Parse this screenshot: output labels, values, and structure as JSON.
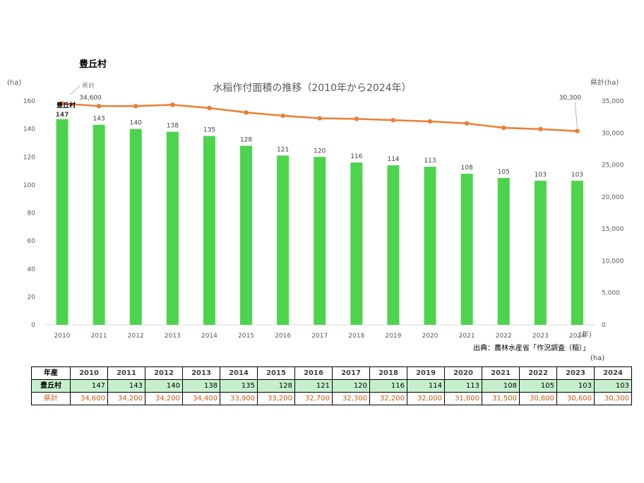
{
  "chart_data": {
    "type": "bar",
    "title": "水稲作付面積の推移（2010年から2024年）",
    "village_name": "豊丘村",
    "left_axis_unit": "(ha)",
    "right_axis_unit": "県計(ha)",
    "x_unit": "(年)",
    "categories": [
      "2010",
      "2011",
      "2012",
      "2013",
      "2014",
      "2015",
      "2016",
      "2017",
      "2018",
      "2019",
      "2020",
      "2021",
      "2022",
      "2023",
      "2024"
    ],
    "series": [
      {
        "name": "豊丘村",
        "type": "bar",
        "axis": "left",
        "color": "#4dd44d",
        "values": [
          147,
          143,
          140,
          138,
          135,
          128,
          121,
          120,
          116,
          114,
          113,
          108,
          105,
          103,
          103
        ]
      },
      {
        "name": "県計",
        "type": "line",
        "axis": "right",
        "color": "#ed7d31",
        "values": [
          34600,
          34200,
          34200,
          34400,
          33900,
          33200,
          32700,
          32300,
          32200,
          32000,
          31800,
          31500,
          30800,
          30600,
          30300
        ]
      }
    ],
    "y_left": {
      "min": 0,
      "max": 160,
      "ticks": [
        "0",
        "20",
        "40",
        "60",
        "80",
        "100",
        "120",
        "140",
        "160"
      ]
    },
    "y_right": {
      "min": 0,
      "max": 35000,
      "ticks": [
        "0",
        "5,000",
        "10,000",
        "15,000",
        "20,000",
        "25,000",
        "30,000",
        "35,000"
      ]
    },
    "line_labels": {
      "first": "34,600",
      "last": "30,300"
    },
    "source": "出典：農林水産省「作況調査（稲）」",
    "grid": false
  },
  "table": {
    "unit": "(ha)",
    "header_label": "年産",
    "years": [
      "2010",
      "2011",
      "2012",
      "2013",
      "2014",
      "2015",
      "2016",
      "2017",
      "2018",
      "2019",
      "2020",
      "2021",
      "2022",
      "2023",
      "2024"
    ],
    "village_label": "豊丘村",
    "village_values": [
      "147",
      "143",
      "140",
      "138",
      "135",
      "128",
      "121",
      "120",
      "116",
      "114",
      "113",
      "108",
      "105",
      "103",
      "103"
    ],
    "pref_label": "県計",
    "pref_values": [
      "34,600",
      "34,200",
      "34,200",
      "34,400",
      "33,900",
      "33,200",
      "32,700",
      "32,300",
      "32,200",
      "32,000",
      "31,800",
      "31,500",
      "30,800",
      "30,600",
      "30,300"
    ]
  }
}
